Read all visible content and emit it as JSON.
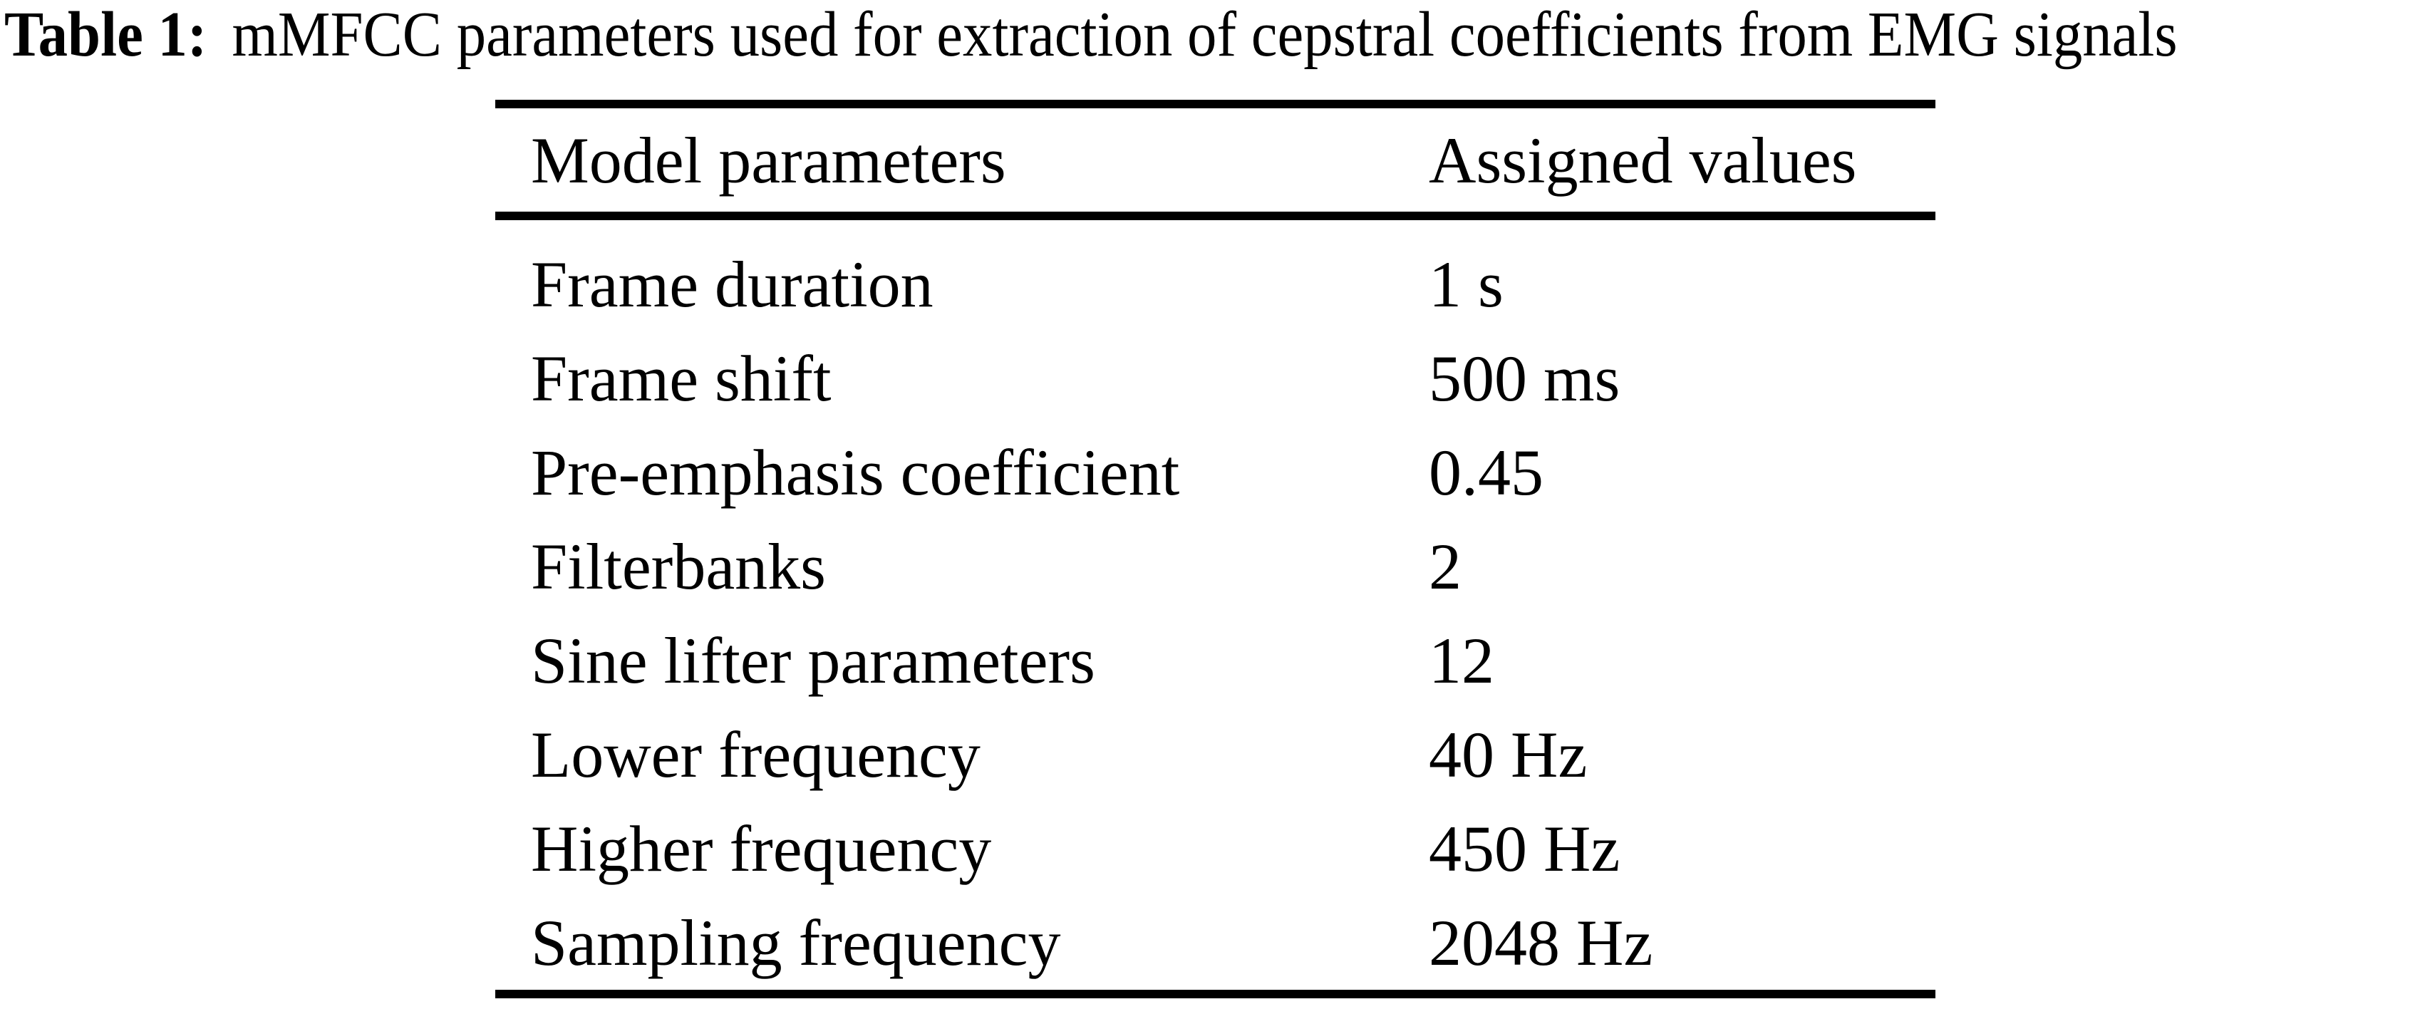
{
  "caption": {
    "label": "Table 1:",
    "text": "mMFCC parameters used for extraction of cepstral coefficients from EMG signals"
  },
  "table": {
    "columns": [
      "Model parameters",
      "Assigned values"
    ],
    "rows": [
      [
        "Frame duration",
        "1 s"
      ],
      [
        "Frame shift",
        "500 ms"
      ],
      [
        "Pre-emphasis coefficient",
        "0.45"
      ],
      [
        "Filterbanks",
        "2"
      ],
      [
        "Sine lifter parameters",
        "12"
      ],
      [
        "Lower frequency",
        "40 Hz"
      ],
      [
        "Higher frequency",
        "450 Hz"
      ],
      [
        "Sampling frequency",
        "2048 Hz"
      ]
    ]
  },
  "colors": {
    "text": "#000000",
    "background": "#ffffff"
  }
}
